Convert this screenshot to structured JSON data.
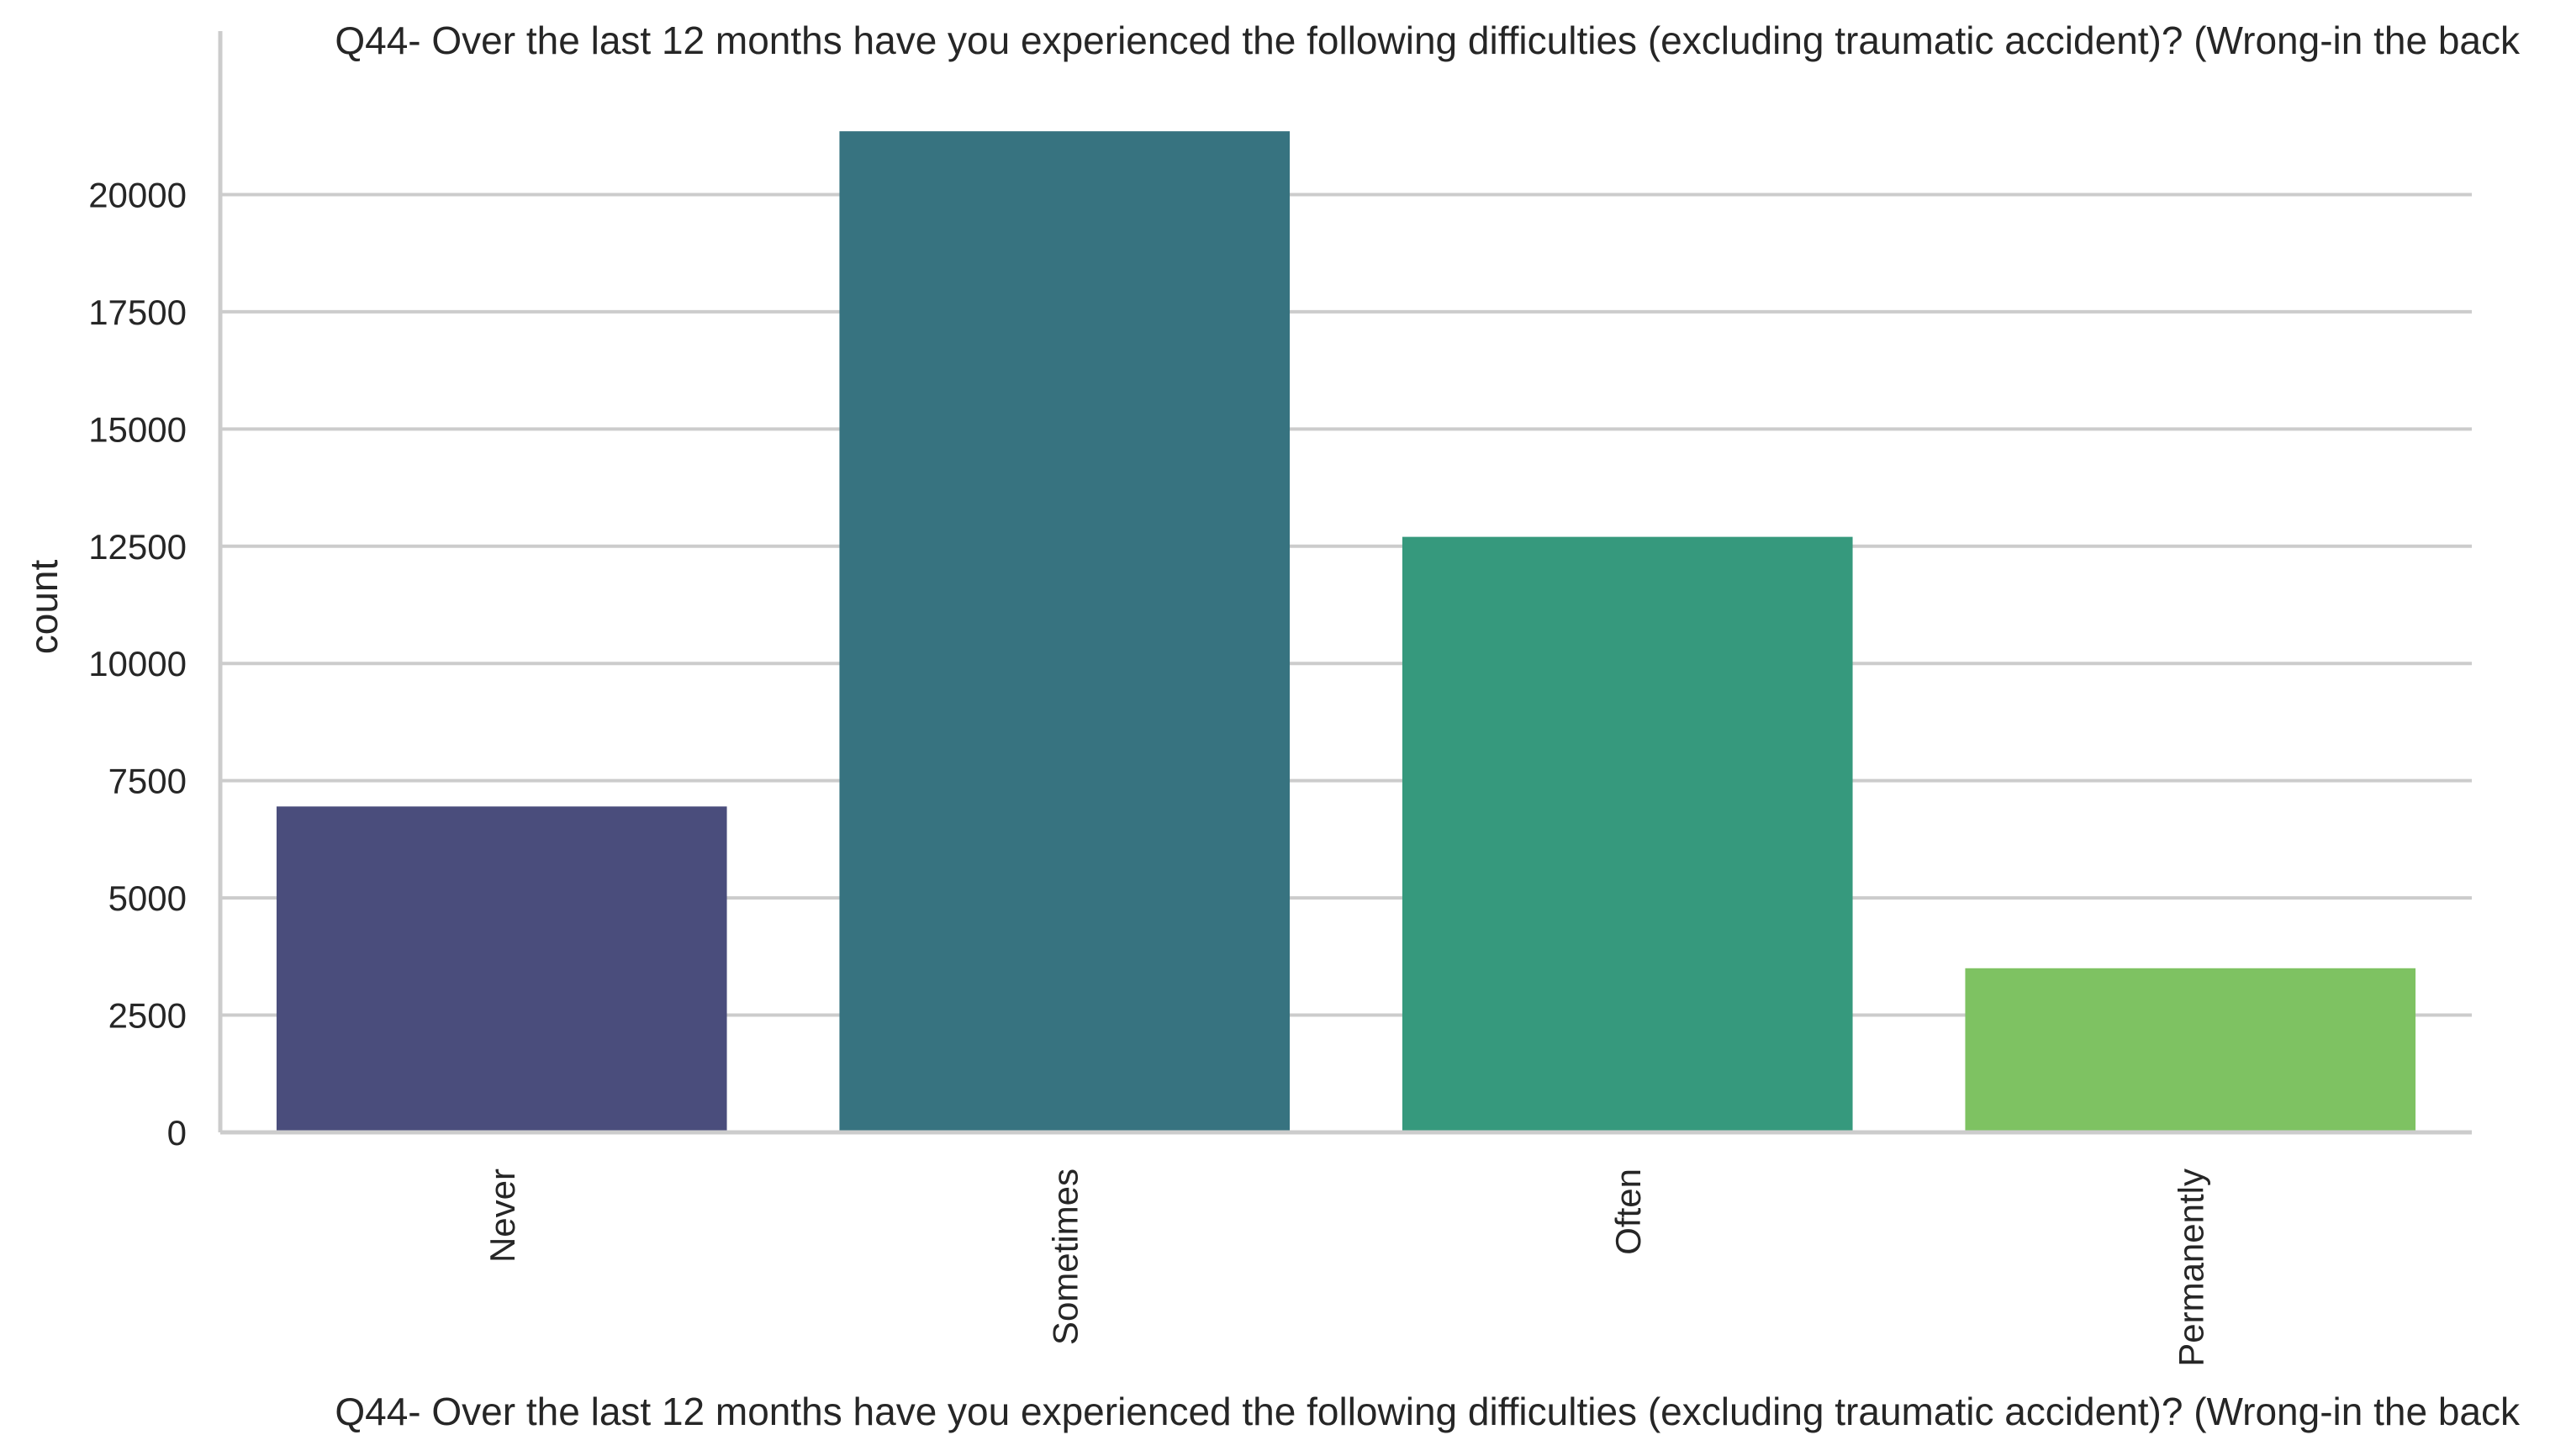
{
  "chart_data": {
    "type": "bar",
    "title": "Q44- Over the last 12 months have you experienced the following difficulties (excluding traumatic accident)? (Wrong-in the back",
    "xlabel": "Q44- Over the last 12 months have you experienced the following difficulties (excluding traumatic accident)? (Wrong-in the back",
    "ylabel": "count",
    "categories": [
      "Never",
      "Sometimes",
      "Often",
      "Permanently"
    ],
    "values": [
      6950,
      21350,
      12700,
      3500
    ],
    "colors": [
      "#4a4d7c",
      "#377380",
      "#36997d",
      "#7ec262"
    ],
    "ylim": [
      0,
      22500
    ],
    "yticks": [
      0,
      2500,
      5000,
      7500,
      10000,
      12500,
      15000,
      17500,
      20000
    ],
    "ytick_labels": [
      "0",
      "2500",
      "5000",
      "7500",
      "10000",
      "12500",
      "15000",
      "17500",
      "20000"
    ],
    "grid": true,
    "legend": "none"
  }
}
